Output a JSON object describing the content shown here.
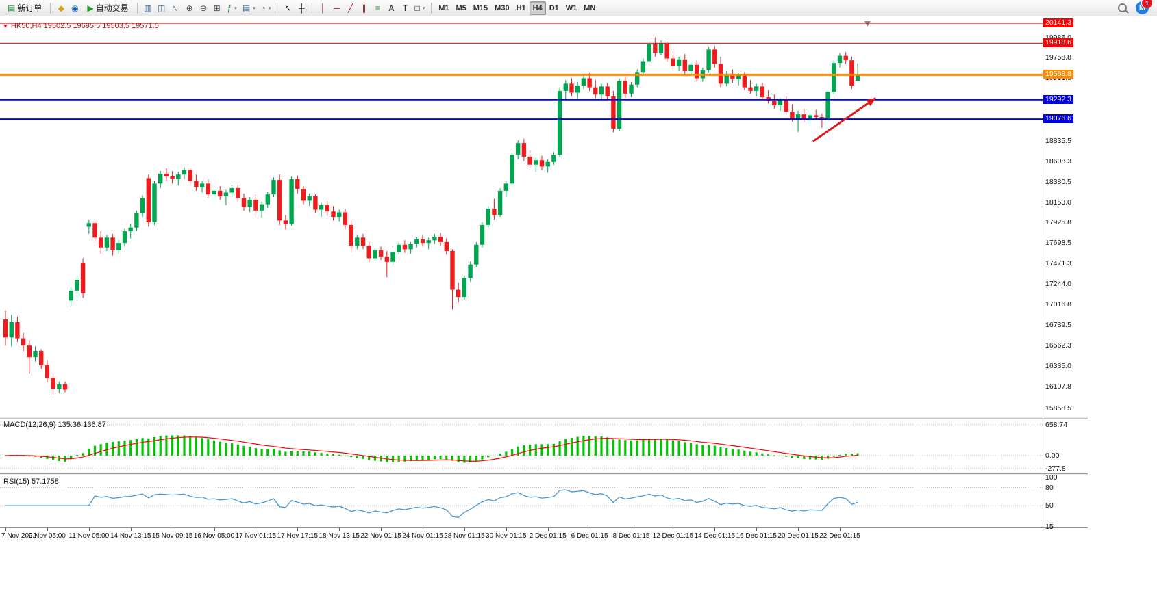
{
  "toolbar": {
    "new_order": {
      "label": "新订单",
      "glyph": "▤"
    },
    "auto_trading": {
      "label": "自动交易",
      "glyph": "▶"
    },
    "icon_groups": [
      {
        "name": "account-icons",
        "items": [
          {
            "name": "market-icon",
            "glyph": "◆",
            "color": "#d9a018"
          },
          {
            "name": "community-chart-icon",
            "glyph": "◉",
            "color": "#1565c0"
          }
        ]
      },
      {
        "name": "chart-type-icons",
        "items": [
          {
            "name": "bar-chart-icon",
            "glyph": "▥",
            "color": "#46709e"
          },
          {
            "name": "candlestick-chart-icon",
            "glyph": "◫",
            "color": "#46709e"
          },
          {
            "name": "line-chart-icon",
            "glyph": "∿",
            "color": "#46709e"
          }
        ]
      },
      {
        "name": "zoom-icons",
        "items": [
          {
            "name": "zoom-in-icon",
            "glyph": "⊕",
            "color": "#444444"
          },
          {
            "name": "zoom-out-icon",
            "glyph": "⊖",
            "color": "#444444"
          },
          {
            "name": "tile-windows-icon",
            "glyph": "⊞",
            "color": "#444444"
          }
        ]
      },
      {
        "name": "chart-manage-icons",
        "items": [
          {
            "name": "indicators-icon",
            "glyph": "ƒ",
            "color": "#1c7c34",
            "caret": true
          },
          {
            "name": "new-chart-icon",
            "glyph": "▤",
            "color": "#46709e",
            "caret": true
          },
          {
            "name": "periods-icon",
            "glyph": "◔",
            "color": "#46709e",
            "caret": true
          }
        ]
      },
      {
        "name": "cursor-icons",
        "items": [
          {
            "name": "cursor-icon",
            "glyph": "↖",
            "color": "#222222"
          },
          {
            "name": "crosshair-icon",
            "glyph": "┼",
            "color": "#222222"
          }
        ]
      },
      {
        "name": "draw-icons",
        "items": [
          {
            "name": "vertical-line-icon",
            "glyph": "│",
            "color": "#8b1a1a"
          },
          {
            "name": "horizontal-line-icon",
            "glyph": "─",
            "color": "#8b1a1a"
          },
          {
            "name": "trendline-icon",
            "glyph": "╱",
            "color": "#8b1a1a"
          },
          {
            "name": "channel-icon",
            "glyph": "∥",
            "color": "#8b1a1a"
          },
          {
            "name": "fibonacci-icon",
            "glyph": "≡",
            "color": "#1c7c34"
          },
          {
            "name": "text-icon",
            "glyph": "A",
            "color": "#222222"
          },
          {
            "name": "text-label-icon",
            "glyph": "T",
            "color": "#222222"
          },
          {
            "name": "shapes-icon",
            "glyph": "□",
            "color": "#222222",
            "caret": true
          }
        ]
      }
    ],
    "timeframes": [
      "M1",
      "M5",
      "M15",
      "M30",
      "H1",
      "H4",
      "D1",
      "W1",
      "MN"
    ],
    "active_timeframe": "H4",
    "community_glyph": "M",
    "notification_badge": "1"
  },
  "chart": {
    "symbol_marker_glyph": "▼",
    "symbol_title": "HK50,H4 19502.5 19695.5 19503.5 19571.5",
    "price_axis_labels": [
      "19986.0",
      "19758.8",
      "19531.5",
      "19304.3",
      "19077.0",
      "18835.5",
      "18608.3",
      "18380.5",
      "18153.0",
      "17925.8",
      "17698.5",
      "17471.3",
      "17244.0",
      "17016.8",
      "16789.5",
      "16562.3",
      "16335.0",
      "16107.8",
      "15858.5"
    ]
  },
  "colors": {
    "bull": "#00a64f",
    "bear": "#ee1c1c",
    "macd_hist": "#00c400",
    "macd_signal": "#ff0000",
    "rsi_line": "#4596d2",
    "arrow": "#e01818"
  },
  "chart_data": {
    "type": "candlestick",
    "symbol": "HK50",
    "timeframe": "H4",
    "title": "HK50,H4",
    "last_ohlc": {
      "open": "19502.5",
      "high": "19695.5",
      "low": "19503.5",
      "close": "19571.5"
    },
    "ylim": [
      15770,
      20180
    ],
    "levels": [
      {
        "label": "20141.3",
        "value": 20141.3,
        "color": "#ff0000",
        "width": 1
      },
      {
        "label": "19918.6",
        "value": 19918.6,
        "color": "#ff0000",
        "width": 1
      },
      {
        "label": "19568.8",
        "value": 19568.8,
        "color": "#ff8a00",
        "width": 3
      },
      {
        "label": "19292.3",
        "value": 19292.3,
        "color": "#0000ee",
        "width": 2
      },
      {
        "label": "19076.6",
        "value": 19076.6,
        "color": "#0000ee",
        "width": 2
      }
    ],
    "annotations": [
      {
        "type": "arrow",
        "from_bar": 135.5,
        "from_price": 18830,
        "to_bar": 146,
        "to_price": 19310,
        "color": "#e01818",
        "width": 3
      }
    ],
    "ohlc": [
      [
        16850,
        16950,
        16560,
        16650
      ],
      [
        16650,
        16900,
        16550,
        16820
      ],
      [
        16820,
        16880,
        16600,
        16640
      ],
      [
        16640,
        16700,
        16500,
        16560
      ],
      [
        16560,
        16620,
        16250,
        16430
      ],
      [
        16430,
        16550,
        16380,
        16500
      ],
      [
        16500,
        16520,
        16300,
        16340
      ],
      [
        16340,
        16400,
        16150,
        16200
      ],
      [
        16200,
        16260,
        16010,
        16080
      ],
      [
        16080,
        16160,
        16030,
        16130
      ],
      [
        16130,
        16160,
        16040,
        16070
      ],
      [
        17060,
        17210,
        16990,
        17170
      ],
      [
        17170,
        17340,
        17090,
        17290
      ],
      [
        17480,
        17530,
        17090,
        17140
      ],
      [
        17880,
        17960,
        17800,
        17920
      ],
      [
        17920,
        17950,
        17700,
        17760
      ],
      [
        17760,
        17830,
        17580,
        17650
      ],
      [
        17650,
        17790,
        17610,
        17760
      ],
      [
        17760,
        17800,
        17560,
        17620
      ],
      [
        17620,
        17730,
        17580,
        17700
      ],
      [
        17700,
        17860,
        17660,
        17830
      ],
      [
        17830,
        17910,
        17750,
        17870
      ],
      [
        17870,
        18060,
        17830,
        18030
      ],
      [
        18030,
        18230,
        17990,
        18200
      ],
      [
        18420,
        18460,
        17880,
        17930
      ],
      [
        17930,
        18390,
        17900,
        18360
      ],
      [
        18360,
        18500,
        18310,
        18470
      ],
      [
        18470,
        18530,
        18390,
        18440
      ],
      [
        18440,
        18500,
        18360,
        18410
      ],
      [
        18410,
        18490,
        18340,
        18460
      ],
      [
        18460,
        18540,
        18410,
        18510
      ],
      [
        18510,
        18530,
        18350,
        18390
      ],
      [
        18390,
        18460,
        18280,
        18320
      ],
      [
        18320,
        18390,
        18260,
        18360
      ],
      [
        18360,
        18410,
        18200,
        18240
      ],
      [
        18240,
        18310,
        18150,
        18280
      ],
      [
        18280,
        18330,
        18180,
        18220
      ],
      [
        18220,
        18290,
        18120,
        18260
      ],
      [
        18260,
        18340,
        18210,
        18310
      ],
      [
        18310,
        18350,
        18160,
        18200
      ],
      [
        18200,
        18250,
        18060,
        18100
      ],
      [
        18100,
        18210,
        18040,
        18180
      ],
      [
        18180,
        18240,
        18010,
        18060
      ],
      [
        18060,
        18160,
        17980,
        18130
      ],
      [
        18130,
        18270,
        18090,
        18240
      ],
      [
        18240,
        18430,
        18210,
        18400
      ],
      [
        18400,
        18460,
        17900,
        17950
      ],
      [
        17950,
        18010,
        17850,
        17910
      ],
      [
        17910,
        18440,
        17890,
        18410
      ],
      [
        18410,
        18450,
        18250,
        18300
      ],
      [
        18300,
        18330,
        18130,
        18170
      ],
      [
        18170,
        18250,
        18110,
        18220
      ],
      [
        18220,
        18240,
        18030,
        18070
      ],
      [
        18070,
        18140,
        17990,
        18120
      ],
      [
        18120,
        18160,
        18000,
        18050
      ],
      [
        18050,
        18110,
        17950,
        17990
      ],
      [
        17990,
        18070,
        17940,
        18040
      ],
      [
        18040,
        18080,
        17850,
        17900
      ],
      [
        17900,
        17950,
        17600,
        17670
      ],
      [
        17670,
        17790,
        17630,
        17760
      ],
      [
        17760,
        17800,
        17630,
        17670
      ],
      [
        17670,
        17710,
        17490,
        17530
      ],
      [
        17530,
        17650,
        17500,
        17620
      ],
      [
        17620,
        17660,
        17510,
        17550
      ],
      [
        17550,
        17610,
        17320,
        17490
      ],
      [
        17490,
        17630,
        17460,
        17600
      ],
      [
        17600,
        17710,
        17570,
        17680
      ],
      [
        17680,
        17730,
        17590,
        17630
      ],
      [
        17630,
        17710,
        17580,
        17690
      ],
      [
        17690,
        17770,
        17650,
        17740
      ],
      [
        17740,
        17790,
        17660,
        17700
      ],
      [
        17700,
        17760,
        17630,
        17730
      ],
      [
        17730,
        17800,
        17690,
        17770
      ],
      [
        17770,
        17810,
        17670,
        17710
      ],
      [
        17710,
        17750,
        17570,
        17610
      ],
      [
        17610,
        17630,
        16960,
        17180
      ],
      [
        17180,
        17260,
        17040,
        17100
      ],
      [
        17100,
        17340,
        17070,
        17310
      ],
      [
        17310,
        17490,
        17270,
        17460
      ],
      [
        17460,
        17710,
        17430,
        17680
      ],
      [
        17680,
        17930,
        17650,
        17900
      ],
      [
        17900,
        18110,
        17870,
        18080
      ],
      [
        18080,
        18190,
        17960,
        18010
      ],
      [
        18010,
        18310,
        17990,
        18280
      ],
      [
        18280,
        18390,
        18210,
        18360
      ],
      [
        18360,
        18710,
        18330,
        18680
      ],
      [
        18680,
        18840,
        18630,
        18810
      ],
      [
        18810,
        18860,
        18610,
        18660
      ],
      [
        18660,
        18730,
        18530,
        18570
      ],
      [
        18570,
        18650,
        18490,
        18620
      ],
      [
        18620,
        18670,
        18510,
        18550
      ],
      [
        18550,
        18630,
        18480,
        18600
      ],
      [
        18600,
        18710,
        18570,
        18680
      ],
      [
        18680,
        19430,
        18660,
        19390
      ],
      [
        19390,
        19510,
        19290,
        19470
      ],
      [
        19470,
        19530,
        19330,
        19370
      ],
      [
        19370,
        19490,
        19310,
        19450
      ],
      [
        19450,
        19570,
        19410,
        19530
      ],
      [
        19530,
        19590,
        19390,
        19430
      ],
      [
        19430,
        19510,
        19310,
        19350
      ],
      [
        19350,
        19470,
        19290,
        19440
      ],
      [
        19440,
        19480,
        19300,
        19330
      ],
      [
        19330,
        19390,
        18930,
        18970
      ],
      [
        18970,
        19530,
        18940,
        19500
      ],
      [
        19500,
        19550,
        19310,
        19360
      ],
      [
        19360,
        19490,
        19320,
        19460
      ],
      [
        19460,
        19630,
        19430,
        19600
      ],
      [
        19600,
        19750,
        19570,
        19720
      ],
      [
        19720,
        19940,
        19700,
        19910
      ],
      [
        19910,
        19986,
        19770,
        19810
      ],
      [
        19810,
        19950,
        19790,
        19920
      ],
      [
        19920,
        19940,
        19710,
        19750
      ],
      [
        19750,
        19830,
        19630,
        19670
      ],
      [
        19670,
        19770,
        19610,
        19740
      ],
      [
        19740,
        19800,
        19570,
        19610
      ],
      [
        19610,
        19710,
        19550,
        19680
      ],
      [
        19680,
        19730,
        19490,
        19530
      ],
      [
        19530,
        19650,
        19490,
        19620
      ],
      [
        19620,
        19880,
        19600,
        19850
      ],
      [
        19850,
        19890,
        19650,
        19690
      ],
      [
        19690,
        19770,
        19430,
        19470
      ],
      [
        19470,
        19610,
        19440,
        19580
      ],
      [
        19580,
        19630,
        19480,
        19520
      ],
      [
        19520,
        19590,
        19450,
        19560
      ],
      [
        19560,
        19600,
        19400,
        19430
      ],
      [
        19430,
        19510,
        19360,
        19390
      ],
      [
        19390,
        19470,
        19330,
        19440
      ],
      [
        19440,
        19480,
        19290,
        19320
      ],
      [
        19320,
        19400,
        19250,
        19280
      ],
      [
        19280,
        19350,
        19190,
        19230
      ],
      [
        19230,
        19310,
        19170,
        19290
      ],
      [
        19290,
        19330,
        19130,
        19160
      ],
      [
        19160,
        19240,
        19050,
        19080
      ],
      [
        19080,
        19170,
        18930,
        19130
      ],
      [
        19130,
        19190,
        19040,
        19070
      ],
      [
        19070,
        19150,
        19020,
        19120
      ],
      [
        19120,
        19180,
        19070,
        19100
      ],
      [
        19100,
        19140,
        18980,
        19090
      ],
      [
        19090,
        19410,
        19060,
        19380
      ],
      [
        19380,
        19730,
        19350,
        19700
      ],
      [
        19700,
        19810,
        19650,
        19780
      ],
      [
        19780,
        19820,
        19690,
        19730
      ],
      [
        19730,
        19770,
        19410,
        19450
      ],
      [
        19502.5,
        19695.5,
        19503.5,
        19571.5
      ]
    ],
    "date_ticks": [
      {
        "label": "7 Nov 2022",
        "bar": 0
      },
      {
        "label": "9 Nov 05:00",
        "bar": 7
      },
      {
        "label": "11 Nov 05:00",
        "bar": 14
      },
      {
        "label": "14 Nov 13:15",
        "bar": 21
      },
      {
        "label": "15 Nov 09:15",
        "bar": 28
      },
      {
        "label": "16 Nov 05:00",
        "bar": 35
      },
      {
        "label": "17 Nov 01:15",
        "bar": 42
      },
      {
        "label": "17 Nov 17:15",
        "bar": 49
      },
      {
        "label": "18 Nov 13:15",
        "bar": 56
      },
      {
        "label": "22 Nov 01:15",
        "bar": 63
      },
      {
        "label": "24 Nov 01:15",
        "bar": 70
      },
      {
        "label": "28 Nov 01:15",
        "bar": 77
      },
      {
        "label": "30 Nov 01:15",
        "bar": 84
      },
      {
        "label": "2 Dec 01:15",
        "bar": 91
      },
      {
        "label": "6 Dec 01:15",
        "bar": 98
      },
      {
        "label": "8 Dec 01:15",
        "bar": 105
      },
      {
        "label": "12 Dec 01:15",
        "bar": 112
      },
      {
        "label": "14 Dec 01:15",
        "bar": 119
      },
      {
        "label": "16 Dec 01:15",
        "bar": 126
      },
      {
        "label": "20 Dec 01:15",
        "bar": 133
      },
      {
        "label": "22 Dec 01:15",
        "bar": 140
      }
    ],
    "indicators": {
      "macd": {
        "name": "MACD",
        "params": [
          12,
          26,
          9
        ],
        "label": "MACD(12,26,9)",
        "current_values": "135.36 136.87",
        "axis_labels": [
          "658.74",
          "0.00",
          "-277.8"
        ],
        "vmax": 790,
        "vmin": -381
      },
      "rsi": {
        "name": "RSI",
        "params": [
          15
        ],
        "label": "RSI(15)",
        "current_value": "57.1758",
        "axis_labels": [
          "100",
          "80",
          "50",
          "15"
        ],
        "levels": [
          80,
          50
        ],
        "vmax": 100,
        "vmin": 15
      }
    }
  }
}
